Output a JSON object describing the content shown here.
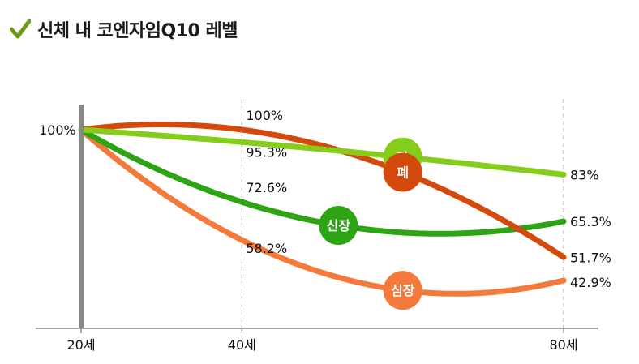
{
  "title": "신체 내 코엔자임Q10 레벨",
  "colors": {
    "check": "#6e9a1c",
    "axis": "#888888",
    "grid": "#999999"
  },
  "chart_data": {
    "type": "line",
    "x_ticks": [
      {
        "x": 20,
        "label": "20세"
      },
      {
        "x": 40,
        "label": "40세"
      },
      {
        "x": 80,
        "label": "80세"
      }
    ],
    "xlim": [
      20,
      80
    ],
    "ylim": [
      30,
      105
    ],
    "y_start_label": "100%",
    "grid": "vertical dashed at 40 and 80",
    "series": [
      {
        "name": "간",
        "color": "#86cc1a",
        "points": [
          [
            20,
            100
          ],
          [
            40,
            95.3
          ],
          [
            80,
            83
          ]
        ],
        "mid_label": "95.3%",
        "end_label": "83%"
      },
      {
        "name": "폐",
        "color": "#d44a0c",
        "points": [
          [
            20,
            100
          ],
          [
            40,
            100
          ],
          [
            80,
            51.7
          ]
        ],
        "mid_label": "100%",
        "end_label": "51.7%"
      },
      {
        "name": "신장",
        "color": "#2ca414",
        "points": [
          [
            20,
            100
          ],
          [
            40,
            72.6
          ],
          [
            80,
            65.3
          ]
        ],
        "mid_label": "72.6%",
        "end_label": "65.3%"
      },
      {
        "name": "심장",
        "color": "#f47a3c",
        "points": [
          [
            20,
            100
          ],
          [
            40,
            58.2
          ],
          [
            80,
            42.9
          ]
        ],
        "mid_label": "58.2%",
        "end_label": "42.9%"
      }
    ]
  }
}
